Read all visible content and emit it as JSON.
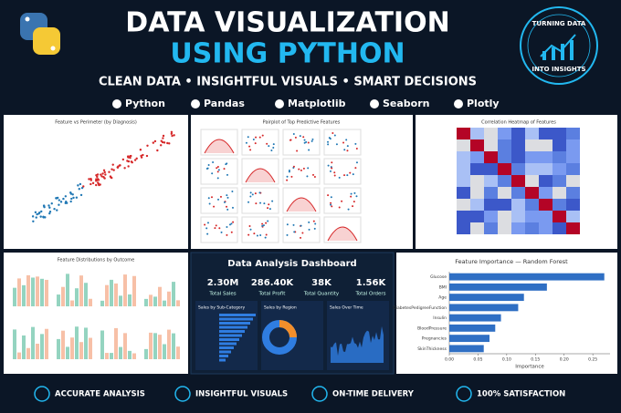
{
  "header": {
    "title_line1": "DATA VISUALIZATION",
    "title_line2": "USING PYTHON",
    "tagline": "CLEAN DATA • INSIGHTFUL VISUALS • SMART DECISIONS",
    "tools": [
      "Python",
      "Pandas",
      "Matplotlib",
      "Seaborn",
      "Plotly"
    ],
    "badge": [
      "TURNING DATA",
      "INTO INSIGHTS"
    ]
  },
  "panels": {
    "scatter": "Feature vs Perimeter (by Diagnosis)",
    "pairplot": "Pairplot of Top Predictive Features",
    "heatmap": "Correlation Heatmap of Features",
    "distributions": "Feature Distributions by Outcome"
  },
  "dashboard": {
    "title": "Data Analysis Dashboard",
    "kpis": [
      {
        "value": "2.30M",
        "label": "Total Sales"
      },
      {
        "value": "286.40K",
        "label": "Total Profit"
      },
      {
        "value": "38K",
        "label": "Total Quantity"
      },
      {
        "value": "1.56K",
        "label": "Total Orders"
      }
    ],
    "subpanels": [
      "Sales by Sub-Category",
      "Sales by Region",
      "Sales Over Time"
    ]
  },
  "feature_importance": {
    "type": "bar",
    "title": "Feature Importance — Random Forest",
    "x_label": "Importance",
    "categories": [
      "Glucose",
      "BMI",
      "Age",
      "DiabetesPedigreeFunction",
      "Insulin",
      "BloodPressure",
      "Pregnancies",
      "SkinThickness"
    ],
    "values": [
      0.27,
      0.17,
      0.13,
      0.12,
      0.09,
      0.08,
      0.07,
      0.06
    ],
    "color": "#2f6fc4",
    "xlim": [
      0,
      0.28
    ],
    "xticks": [
      {
        "value": 0,
        "label": "0.00"
      },
      {
        "value": 0.05,
        "label": "0.05"
      },
      {
        "value": 0.1,
        "label": "0.10"
      },
      {
        "value": 0.15,
        "label": "0.15"
      },
      {
        "value": 0.2,
        "label": "0.20"
      },
      {
        "value": 0.25,
        "label": "0.25"
      }
    ]
  },
  "features": [
    "ACCURATE ANALYSIS",
    "INSIGHTFUL VISUALS",
    "ON-TIME DELIVERY",
    "100% SATISFACTION"
  ]
}
